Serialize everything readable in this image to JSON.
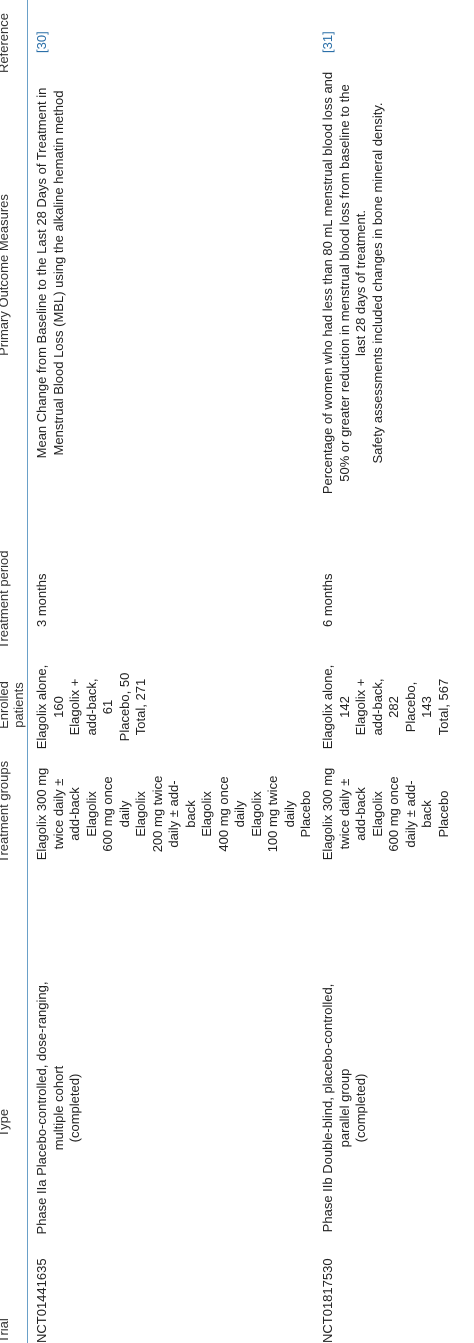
{
  "headers": {
    "trial": "Trial",
    "type": "Type",
    "groups": "Treatment groups",
    "enrolled": [
      "Enrolled",
      "patients"
    ],
    "period": "Treatment period",
    "outcomes": "Primary Outcome Measures",
    "reference": "Reference"
  },
  "rows": [
    {
      "trial": "NCT01441635",
      "type": [
        "Phase IIa Placebo-controlled, dose-ranging,",
        "multiple cohort",
        "(completed)"
      ],
      "groups": [
        "Elagolix 300 mg",
        "twice daily ±",
        "add-back",
        "Elagolix",
        "600 mg once",
        "daily",
        "Elagolix",
        "200 mg twice",
        "daily ± add-",
        "back",
        "Elagolix",
        "400 mg once",
        "daily",
        "Elagolix",
        "100 mg twice",
        "daily",
        "Placebo"
      ],
      "enrolled": [
        "Elagolix alone,",
        "160",
        "Elagolix +",
        "add-back,",
        "61",
        "Placebo, 50",
        "Total, 271"
      ],
      "period": "3 months",
      "outcomes": [
        "Mean Change from Baseline to the Last 28 Days of Treatment in",
        "Menstrual Blood Loss (MBL) using the alkaline hematin method"
      ],
      "reference": "[30]"
    },
    {
      "trial": "NCT01817530",
      "type": [
        "Phase IIb Double-blind, placebo-controlled,",
        "parallel group",
        "(completed)"
      ],
      "groups": [
        "Elagolix 300 mg",
        "twice daily ±",
        "add-back",
        "Elagolix",
        "600 mg once",
        "daily ± add-",
        "back",
        "Placebo"
      ],
      "enrolled": [
        "Elagolix alone,",
        "142",
        "Elagolix +",
        "add-back,",
        "282",
        "Placebo,",
        "143",
        "Total, 567"
      ],
      "period": "6 months",
      "outcomes": [
        "Percentage of women who had less than 80 mL menstrual blood loss and",
        "50% or greater reduction in menstrual blood loss from baseline to the",
        "last 28 days of treatment.",
        "Safety assessments included changes in bone mineral density."
      ],
      "reference": "[31]"
    }
  ]
}
